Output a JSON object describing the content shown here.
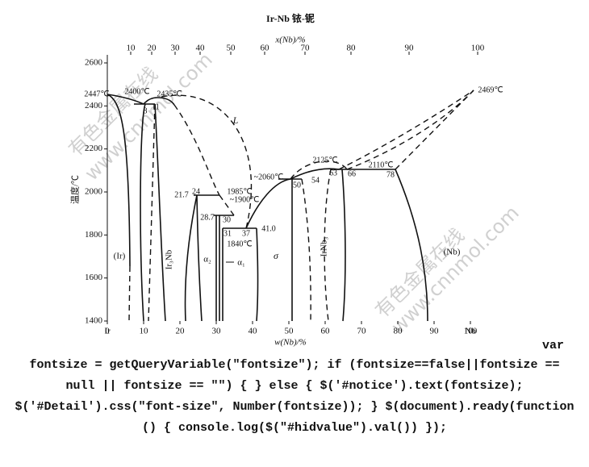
{
  "diagram": {
    "title": "Ir-Nb  铱-铌",
    "top_axis": {
      "label": "x(Nb)/%",
      "ticks": [
        10,
        20,
        30,
        40,
        50,
        60,
        70,
        80,
        90,
        100
      ]
    },
    "bottom_axis": {
      "label": "w(Nb)/%",
      "ticks": [
        0,
        10,
        20,
        30,
        40,
        50,
        60,
        70,
        80,
        90,
        100
      ],
      "end_labels": [
        "Ir",
        "Nb"
      ]
    },
    "left_axis": {
      "label": "温度/℃",
      "ticks": [
        2600,
        2400,
        2200,
        2000,
        1800,
        1600,
        1400
      ]
    },
    "phase_labels": [
      "L",
      "(Ir)",
      "Ir₃Nb",
      "α₂",
      "α₁",
      "σ",
      "IrNb₃",
      "(Nb)"
    ],
    "point_labels": [
      "2447℃",
      "2400℃",
      "2435℃",
      "8",
      "11",
      "21.7",
      "24",
      "1985℃",
      "~1900℃",
      "28.7",
      "30",
      "31",
      "37",
      "1840℃",
      "41.0",
      "~2060℃",
      "50",
      "54",
      "2125℃",
      "63",
      "66",
      "2110℃",
      "78",
      "2469℃"
    ],
    "watermarks": [
      "有色金属在线",
      "www.cnnmol.com",
      "有色金属在线",
      "www.cnnmol.com"
    ]
  },
  "code_text": [
    "var",
    "fontsize = getQueryVariable(\"fontsize\"); if (fontsize==false||fontsize ==",
    "null || fontsize == \"\") { } else { $('#notice').text(fontsize);",
    "$('#Detail').css(\"font-size\", Number(fontsize)); } $(document).ready(function",
    "() { console.log($(\"#hidvalue\").val()) });"
  ]
}
